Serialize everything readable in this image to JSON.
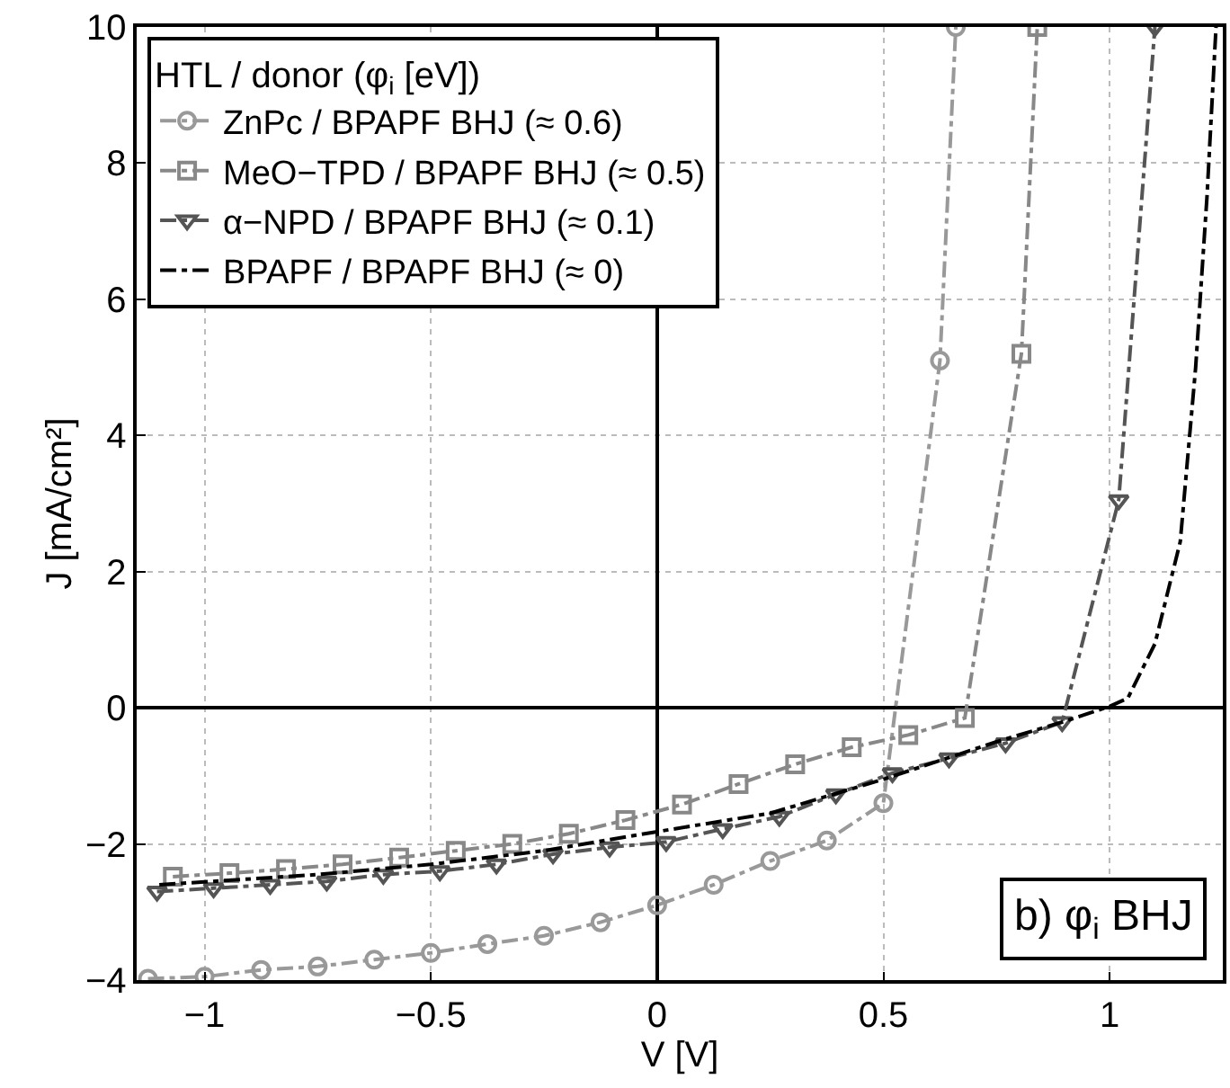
{
  "chart_data": {
    "type": "line",
    "xlabel": "V [V]",
    "ylabel": "J [mA/cm²]",
    "legend_title": "HTL / donor (φ$_{i}$ [eV])",
    "xlim": [
      -1.15,
      1.25
    ],
    "ylim": [
      -4,
      10
    ],
    "xticks": [
      -1,
      -0.5,
      0,
      0.5,
      1
    ],
    "yticks": [
      -4,
      -2,
      0,
      2,
      4,
      6,
      8,
      10
    ],
    "grid": true,
    "legend": "top left",
    "line_style": "dashed",
    "annotations": [
      "b) φ$_{i}$ BHJ"
    ],
    "series": [
      {
        "name": "ZnPc / BPAPF BHJ (≈ 0.6)",
        "color": "#999999",
        "marker": "circle",
        "x": [
          -1.125,
          -1.0,
          -0.875,
          -0.75,
          -0.625,
          -0.5,
          -0.375,
          -0.25,
          -0.125,
          0,
          0.125,
          0.25,
          0.375,
          0.5,
          0.625,
          0.66
        ],
        "values": [
          -3.98,
          -3.95,
          -3.85,
          -3.8,
          -3.7,
          -3.6,
          -3.47,
          -3.35,
          -3.15,
          -2.9,
          -2.6,
          -2.25,
          -1.95,
          -1.4,
          5.1,
          10
        ]
      },
      {
        "name": "MeO−TPD / BPAPF BHJ (≈ 0.5)",
        "color": "#888888",
        "marker": "square",
        "x": [
          -1.07,
          -0.945,
          -0.82,
          -0.695,
          -0.57,
          -0.445,
          -0.32,
          -0.195,
          -0.07,
          0.055,
          0.18,
          0.305,
          0.43,
          0.555,
          0.68,
          0.805,
          0.84
        ],
        "values": [
          -2.48,
          -2.43,
          -2.37,
          -2.3,
          -2.2,
          -2.1,
          -2.0,
          -1.85,
          -1.65,
          -1.42,
          -1.12,
          -0.83,
          -0.58,
          -0.4,
          -0.15,
          5.2,
          10
        ]
      },
      {
        "name": "α−NPD / BPAPF BHJ (≈ 0.1)",
        "color": "#555555",
        "marker": "triangle",
        "x": [
          -1.105,
          -0.98,
          -0.855,
          -0.73,
          -0.605,
          -0.48,
          -0.355,
          -0.23,
          -0.105,
          0.02,
          0.145,
          0.27,
          0.395,
          0.52,
          0.645,
          0.77,
          0.895,
          1.02,
          1.1
        ],
        "values": [
          -2.7,
          -2.65,
          -2.6,
          -2.55,
          -2.45,
          -2.4,
          -2.3,
          -2.15,
          -2.05,
          -1.97,
          -1.78,
          -1.6,
          -1.27,
          -0.96,
          -0.74,
          -0.52,
          -0.21,
          3.05,
          10
        ]
      },
      {
        "name": "BPAPF / BPAPF BHJ (≈ 0)",
        "color": "#000000",
        "marker": "none",
        "x": [
          -1.1,
          -0.75,
          -0.5,
          -0.25,
          0,
          0.25,
          0.5,
          0.75,
          0.9,
          1.0,
          1.04,
          1.1,
          1.156,
          1.19,
          1.215,
          1.235
        ],
        "values": [
          -2.6,
          -2.45,
          -2.3,
          -2.1,
          -1.82,
          -1.55,
          -1.05,
          -0.5,
          -0.2,
          0.02,
          0.14,
          0.94,
          2.44,
          5,
          7.5,
          10
        ]
      }
    ]
  }
}
